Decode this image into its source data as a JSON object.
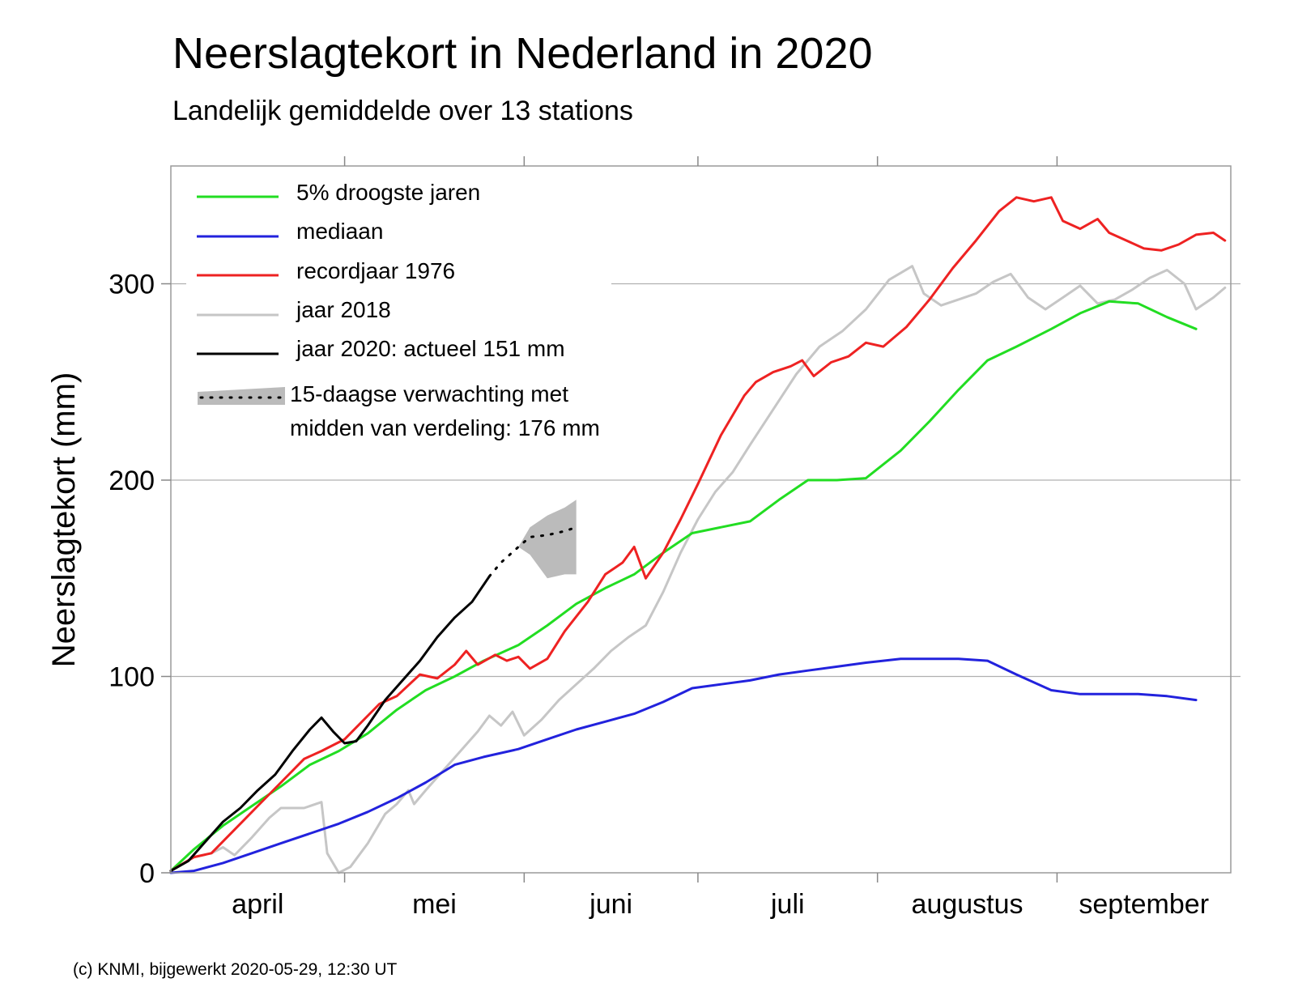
{
  "chart_data": {
    "type": "line",
    "title": "Neerslagtekort in Nederland in 2020",
    "subtitle": "Landelijk gemiddelde over 13 stations",
    "ylabel": "Neerslagtekort (mm)",
    "xlabel": "",
    "x_scale": "date",
    "xlim": [
      "2020-04-01",
      "2020-09-30"
    ],
    "ylim": [
      0,
      360
    ],
    "yticks": [
      0,
      100,
      200,
      300
    ],
    "month_labels": [
      "april",
      "mei",
      "juni",
      "juli",
      "augustus",
      "september"
    ],
    "month_starts": [
      "2020-04-01",
      "2020-05-01",
      "2020-06-01",
      "2020-07-01",
      "2020-08-01",
      "2020-09-01"
    ],
    "grid": {
      "horizontal": true,
      "vertical": false
    },
    "legend_position": "top-left",
    "footer": "(c) KNMI, bijgewerkt 2020-05-29, 12:30 UT",
    "series": [
      {
        "name": "5% droogste jaren",
        "color": "#22dd22",
        "points": [
          [
            "2020-04-01",
            1
          ],
          [
            "2020-04-05",
            12
          ],
          [
            "2020-04-10",
            24
          ],
          [
            "2020-04-15",
            34
          ],
          [
            "2020-04-20",
            44
          ],
          [
            "2020-04-25",
            55
          ],
          [
            "2020-04-30",
            62
          ],
          [
            "2020-05-05",
            71
          ],
          [
            "2020-05-10",
            83
          ],
          [
            "2020-05-15",
            93
          ],
          [
            "2020-05-20",
            100
          ],
          [
            "2020-05-25",
            108
          ],
          [
            "2020-05-31",
            116
          ],
          [
            "2020-06-05",
            126
          ],
          [
            "2020-06-10",
            137
          ],
          [
            "2020-06-15",
            145
          ],
          [
            "2020-06-20",
            152
          ],
          [
            "2020-06-25",
            163
          ],
          [
            "2020-06-30",
            173
          ],
          [
            "2020-07-05",
            176
          ],
          [
            "2020-07-10",
            179
          ],
          [
            "2020-07-15",
            190
          ],
          [
            "2020-07-20",
            200
          ],
          [
            "2020-07-25",
            200
          ],
          [
            "2020-07-30",
            201
          ],
          [
            "2020-08-05",
            215
          ],
          [
            "2020-08-10",
            230
          ],
          [
            "2020-08-15",
            246
          ],
          [
            "2020-08-20",
            261
          ],
          [
            "2020-08-25",
            268
          ],
          [
            "2020-08-31",
            277
          ],
          [
            "2020-09-05",
            285
          ],
          [
            "2020-09-10",
            291
          ],
          [
            "2020-09-15",
            290
          ],
          [
            "2020-09-20",
            283
          ],
          [
            "2020-09-25",
            277
          ]
        ]
      },
      {
        "name": "mediaan",
        "color": "#2222dd",
        "points": [
          [
            "2020-04-01",
            0
          ],
          [
            "2020-04-05",
            1
          ],
          [
            "2020-04-10",
            5
          ],
          [
            "2020-04-15",
            10
          ],
          [
            "2020-04-20",
            15
          ],
          [
            "2020-04-25",
            20
          ],
          [
            "2020-04-30",
            25
          ],
          [
            "2020-05-05",
            31
          ],
          [
            "2020-05-10",
            38
          ],
          [
            "2020-05-15",
            46
          ],
          [
            "2020-05-20",
            55
          ],
          [
            "2020-05-25",
            59
          ],
          [
            "2020-05-31",
            63
          ],
          [
            "2020-06-05",
            68
          ],
          [
            "2020-06-10",
            73
          ],
          [
            "2020-06-15",
            77
          ],
          [
            "2020-06-20",
            81
          ],
          [
            "2020-06-25",
            87
          ],
          [
            "2020-06-30",
            94
          ],
          [
            "2020-07-05",
            96
          ],
          [
            "2020-07-10",
            98
          ],
          [
            "2020-07-15",
            101
          ],
          [
            "2020-07-20",
            103
          ],
          [
            "2020-07-25",
            105
          ],
          [
            "2020-07-30",
            107
          ],
          [
            "2020-08-05",
            109
          ],
          [
            "2020-08-10",
            109
          ],
          [
            "2020-08-15",
            109
          ],
          [
            "2020-08-20",
            108
          ],
          [
            "2020-08-25",
            101
          ],
          [
            "2020-08-31",
            93
          ],
          [
            "2020-09-05",
            91
          ],
          [
            "2020-09-10",
            91
          ],
          [
            "2020-09-15",
            91
          ],
          [
            "2020-09-20",
            90
          ],
          [
            "2020-09-25",
            88
          ]
        ]
      },
      {
        "name": "recordjaar 1976",
        "color": "#ee2222",
        "points": [
          [
            "2020-04-01",
            1
          ],
          [
            "2020-04-05",
            8
          ],
          [
            "2020-04-08",
            10
          ],
          [
            "2020-04-12",
            22
          ],
          [
            "2020-04-16",
            34
          ],
          [
            "2020-04-20",
            46
          ],
          [
            "2020-04-24",
            58
          ],
          [
            "2020-04-27",
            62
          ],
          [
            "2020-05-01",
            68
          ],
          [
            "2020-05-05",
            80
          ],
          [
            "2020-05-07",
            86
          ],
          [
            "2020-05-10",
            90
          ],
          [
            "2020-05-14",
            101
          ],
          [
            "2020-05-17",
            99
          ],
          [
            "2020-05-20",
            106
          ],
          [
            "2020-05-22",
            113
          ],
          [
            "2020-05-24",
            106
          ],
          [
            "2020-05-27",
            111
          ],
          [
            "2020-05-29",
            108
          ],
          [
            "2020-05-31",
            110
          ],
          [
            "2020-06-02",
            104
          ],
          [
            "2020-06-05",
            109
          ],
          [
            "2020-06-08",
            123
          ],
          [
            "2020-06-12",
            138
          ],
          [
            "2020-06-15",
            152
          ],
          [
            "2020-06-18",
            158
          ],
          [
            "2020-06-20",
            166
          ],
          [
            "2020-06-22",
            150
          ],
          [
            "2020-06-25",
            163
          ],
          [
            "2020-06-28",
            180
          ],
          [
            "2020-07-01",
            198
          ],
          [
            "2020-07-05",
            223
          ],
          [
            "2020-07-09",
            243
          ],
          [
            "2020-07-11",
            250
          ],
          [
            "2020-07-14",
            255
          ],
          [
            "2020-07-17",
            258
          ],
          [
            "2020-07-19",
            261
          ],
          [
            "2020-07-21",
            253
          ],
          [
            "2020-07-24",
            260
          ],
          [
            "2020-07-27",
            263
          ],
          [
            "2020-07-30",
            270
          ],
          [
            "2020-08-02",
            268
          ],
          [
            "2020-08-06",
            278
          ],
          [
            "2020-08-10",
            292
          ],
          [
            "2020-08-14",
            308
          ],
          [
            "2020-08-18",
            322
          ],
          [
            "2020-08-22",
            337
          ],
          [
            "2020-08-25",
            344
          ],
          [
            "2020-08-28",
            342
          ],
          [
            "2020-08-31",
            344
          ],
          [
            "2020-09-02",
            332
          ],
          [
            "2020-09-05",
            328
          ],
          [
            "2020-09-08",
            333
          ],
          [
            "2020-09-10",
            326
          ],
          [
            "2020-09-13",
            322
          ],
          [
            "2020-09-16",
            318
          ],
          [
            "2020-09-19",
            317
          ],
          [
            "2020-09-22",
            320
          ],
          [
            "2020-09-25",
            325
          ],
          [
            "2020-09-28",
            326
          ],
          [
            "2020-09-30",
            322
          ]
        ]
      },
      {
        "name": "jaar 2018",
        "color": "#c6c6c6",
        "points": [
          [
            "2020-04-01",
            1
          ],
          [
            "2020-04-05",
            8
          ],
          [
            "2020-04-08",
            10
          ],
          [
            "2020-04-10",
            13
          ],
          [
            "2020-04-12",
            9
          ],
          [
            "2020-04-15",
            18
          ],
          [
            "2020-04-18",
            28
          ],
          [
            "2020-04-20",
            33
          ],
          [
            "2020-04-24",
            33
          ],
          [
            "2020-04-27",
            36
          ],
          [
            "2020-04-28",
            10
          ],
          [
            "2020-04-30",
            0
          ],
          [
            "2020-05-02",
            3
          ],
          [
            "2020-05-05",
            15
          ],
          [
            "2020-05-08",
            30
          ],
          [
            "2020-05-10",
            35
          ],
          [
            "2020-05-12",
            42
          ],
          [
            "2020-05-13",
            35
          ],
          [
            "2020-05-15",
            42
          ],
          [
            "2020-05-18",
            52
          ],
          [
            "2020-05-21",
            62
          ],
          [
            "2020-05-24",
            72
          ],
          [
            "2020-05-26",
            80
          ],
          [
            "2020-05-28",
            75
          ],
          [
            "2020-05-30",
            82
          ],
          [
            "2020-06-01",
            70
          ],
          [
            "2020-06-04",
            78
          ],
          [
            "2020-06-07",
            88
          ],
          [
            "2020-06-10",
            96
          ],
          [
            "2020-06-13",
            104
          ],
          [
            "2020-06-16",
            113
          ],
          [
            "2020-06-19",
            120
          ],
          [
            "2020-06-22",
            126
          ],
          [
            "2020-06-25",
            143
          ],
          [
            "2020-06-28",
            163
          ],
          [
            "2020-07-01",
            180
          ],
          [
            "2020-07-04",
            194
          ],
          [
            "2020-07-07",
            204
          ],
          [
            "2020-07-10",
            218
          ],
          [
            "2020-07-14",
            236
          ],
          [
            "2020-07-18",
            254
          ],
          [
            "2020-07-22",
            268
          ],
          [
            "2020-07-26",
            276
          ],
          [
            "2020-07-30",
            287
          ],
          [
            "2020-08-03",
            302
          ],
          [
            "2020-08-07",
            309
          ],
          [
            "2020-08-09",
            295
          ],
          [
            "2020-08-12",
            289
          ],
          [
            "2020-08-15",
            292
          ],
          [
            "2020-08-18",
            295
          ],
          [
            "2020-08-21",
            301
          ],
          [
            "2020-08-24",
            305
          ],
          [
            "2020-08-27",
            293
          ],
          [
            "2020-08-30",
            287
          ],
          [
            "2020-09-02",
            293
          ],
          [
            "2020-09-05",
            299
          ],
          [
            "2020-09-08",
            290
          ],
          [
            "2020-09-11",
            292
          ],
          [
            "2020-09-14",
            297
          ],
          [
            "2020-09-17",
            303
          ],
          [
            "2020-09-20",
            307
          ],
          [
            "2020-09-23",
            300
          ],
          [
            "2020-09-25",
            287
          ],
          [
            "2020-09-28",
            293
          ],
          [
            "2020-09-30",
            298
          ]
        ]
      },
      {
        "name": "jaar 2020: actueel 151 mm",
        "color": "#000000",
        "points": [
          [
            "2020-04-01",
            1
          ],
          [
            "2020-04-04",
            6
          ],
          [
            "2020-04-07",
            16
          ],
          [
            "2020-04-10",
            26
          ],
          [
            "2020-04-13",
            33
          ],
          [
            "2020-04-16",
            42
          ],
          [
            "2020-04-19",
            50
          ],
          [
            "2020-04-22",
            62
          ],
          [
            "2020-04-25",
            73
          ],
          [
            "2020-04-27",
            79
          ],
          [
            "2020-04-29",
            72
          ],
          [
            "2020-05-01",
            66
          ],
          [
            "2020-05-03",
            67
          ],
          [
            "2020-05-05",
            75
          ],
          [
            "2020-05-08",
            88
          ],
          [
            "2020-05-11",
            98
          ],
          [
            "2020-05-14",
            108
          ],
          [
            "2020-05-17",
            120
          ],
          [
            "2020-05-20",
            130
          ],
          [
            "2020-05-23",
            138
          ],
          [
            "2020-05-26",
            151
          ]
        ]
      }
    ],
    "forecast": {
      "name": "15-daagse verwachting met",
      "name_line2": "midden van verdeling: 176 mm",
      "band_color": "#bbbbbb",
      "line_color": "#000000",
      "median": [
        [
          "2020-05-26",
          151
        ],
        [
          "2020-05-28",
          158
        ],
        [
          "2020-05-31",
          166
        ],
        [
          "2020-06-02",
          171
        ],
        [
          "2020-06-05",
          172
        ],
        [
          "2020-06-08",
          174
        ],
        [
          "2020-06-10",
          176
        ]
      ],
      "upper": [
        [
          "2020-05-31",
          166
        ],
        [
          "2020-06-02",
          176
        ],
        [
          "2020-06-05",
          182
        ],
        [
          "2020-06-08",
          186
        ],
        [
          "2020-06-10",
          190
        ]
      ],
      "lower": [
        [
          "2020-05-31",
          166
        ],
        [
          "2020-06-02",
          162
        ],
        [
          "2020-06-05",
          150
        ],
        [
          "2020-06-08",
          152
        ],
        [
          "2020-06-10",
          152
        ]
      ]
    }
  }
}
